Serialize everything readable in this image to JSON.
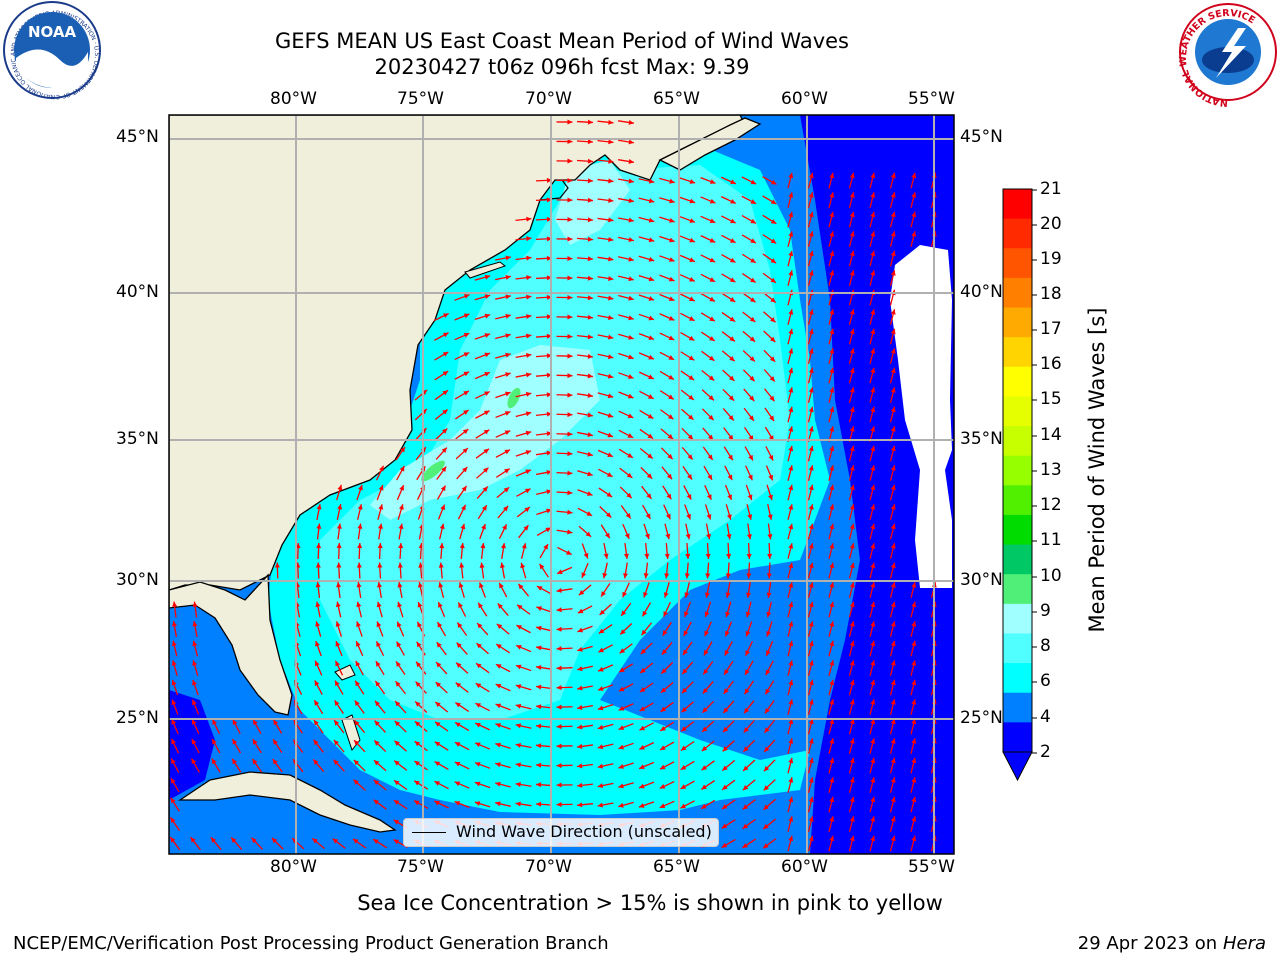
{
  "header": {
    "title_line1": "GEFS MEAN US East Coast Mean Period of Wind Waves",
    "title_line2": "20230427 t06z 096h fcst   Max: 9.39"
  },
  "logos": {
    "left": "NOAA",
    "left_ring": "NATIONAL OCEANIC AND ATMOSPHERIC ADMINISTRATION · U.S. DEPARTMENT OF COMMERCE",
    "right_ring": "NATIONAL WEATHER SERVICE"
  },
  "axes": {
    "lon_labels": [
      "80°W",
      "75°W",
      "70°W",
      "65°W",
      "60°W",
      "55°W"
    ],
    "lat_labels": [
      "45°N",
      "40°N",
      "35°N",
      "30°N",
      "25°N"
    ]
  },
  "colorbar": {
    "label": "Mean Period of Wind Waves [s]",
    "ticks": [
      "21",
      "20",
      "19",
      "18",
      "17",
      "16",
      "15",
      "14",
      "13",
      "12",
      "11",
      "10",
      "9",
      "8",
      "6",
      "4",
      "2"
    ],
    "colors": [
      "#ff0000",
      "#ff2a00",
      "#ff5500",
      "#ff7f00",
      "#ffaa00",
      "#ffd400",
      "#ffff00",
      "#e6ff00",
      "#c8ff00",
      "#96ff00",
      "#50f000",
      "#00dc00",
      "#00c864",
      "#50f078",
      "#a0ffff",
      "#50ffff",
      "#00ffff",
      "#0080ff",
      "#0000ff"
    ]
  },
  "legend": {
    "label": "Wind Wave Direction (unscaled)"
  },
  "notes": {
    "ice": "Sea Ice Concentration > 15% is shown in pink to yellow"
  },
  "footer": {
    "left": "NCEP/EMC/Verification Post Processing Product Generation Branch",
    "right_date": "29 Apr 2023 on ",
    "right_host": "Hera"
  },
  "map_colors": {
    "land": "#efefdc",
    "deep_blue": "#0000ff",
    "mid_blue": "#0080ff",
    "cyan": "#00ffff",
    "light_cyan": "#50ffff",
    "pale_cyan": "#a0ffff",
    "green": "#50f078",
    "arrow": "#ff0000"
  }
}
